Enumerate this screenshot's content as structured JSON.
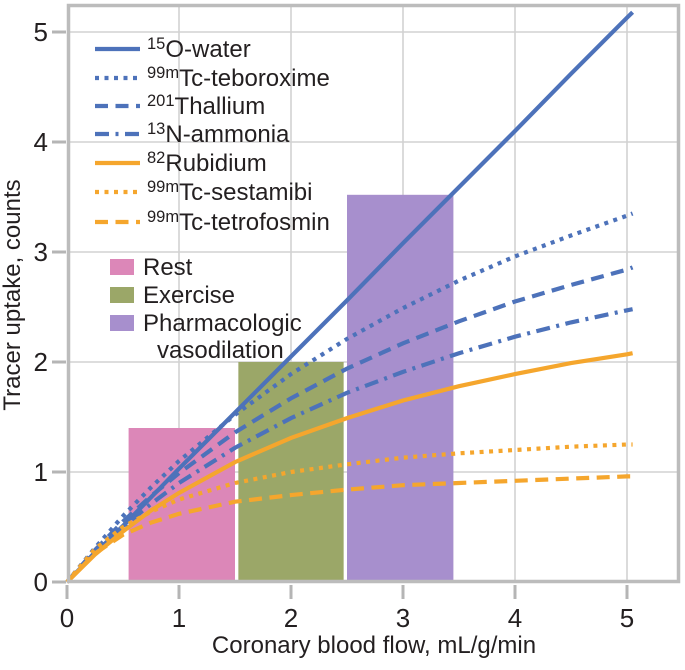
{
  "chart_data": {
    "type": "composite-line-bar",
    "title": "",
    "xlabel": "Coronary blood flow, mL/g/min",
    "ylabel": "Tracer uptake, counts",
    "xlim": [
      0,
      5.47
    ],
    "ylim": [
      0,
      5.26
    ],
    "x_ticks": [
      0,
      1,
      2,
      3,
      4,
      5
    ],
    "y_ticks": [
      0,
      1,
      2,
      3,
      4,
      5
    ],
    "grid": true,
    "legend_position": "inside-top-left",
    "colors": {
      "blue": "#4d72ba",
      "orange": "#f5a62d",
      "pink": "#dc87b8",
      "olive": "#9ba768",
      "purple": "#a78fcd",
      "grid": "#d2d2d2",
      "frame": "#bcbcbc",
      "tick": "#b5b5b5",
      "text": "#231f20"
    },
    "x": [
      0,
      0.25,
      0.5,
      0.75,
      1,
      1.5,
      2,
      2.5,
      3,
      3.5,
      4,
      4.5,
      5,
      5.05
    ],
    "series": [
      {
        "id": "o15-water",
        "sup": "15",
        "label": "O-water",
        "color": "blue",
        "style": "solid",
        "y": [
          0,
          0.26,
          0.51,
          0.77,
          1.03,
          1.54,
          2.05,
          2.56,
          3.08,
          3.59,
          4.1,
          4.62,
          5.13,
          5.18
        ]
      },
      {
        "id": "tc99m-teboroxime",
        "sup": "99m",
        "label": "Tc-teboroxime",
        "color": "blue",
        "style": "dotted",
        "y": [
          0,
          0.31,
          0.6,
          0.86,
          1.1,
          1.52,
          1.89,
          2.21,
          2.49,
          2.74,
          2.96,
          3.15,
          3.33,
          3.35
        ]
      },
      {
        "id": "tl201-thallium",
        "sup": "201",
        "label": "Thallium",
        "color": "blue",
        "style": "dashed",
        "y": [
          0,
          0.29,
          0.55,
          0.78,
          0.99,
          1.36,
          1.67,
          1.94,
          2.17,
          2.37,
          2.55,
          2.7,
          2.84,
          2.86
        ]
      },
      {
        "id": "n13-ammonia",
        "sup": "13",
        "label": "N-ammonia",
        "color": "blue",
        "style": "dashdot",
        "y": [
          0,
          0.27,
          0.5,
          0.71,
          0.9,
          1.22,
          1.49,
          1.72,
          1.91,
          2.08,
          2.23,
          2.36,
          2.47,
          2.48
        ]
      },
      {
        "id": "rb82-rubidium",
        "sup": "82",
        "label": "Rubidium",
        "color": "orange",
        "style": "solid",
        "y": [
          0,
          0.25,
          0.46,
          0.65,
          0.81,
          1.09,
          1.31,
          1.49,
          1.65,
          1.78,
          1.89,
          1.99,
          2.07,
          2.08
        ]
      },
      {
        "id": "tc99m-sestamibi",
        "sup": "99m",
        "label": "Tc-sestamibi",
        "color": "orange",
        "style": "dotted",
        "y": [
          0,
          0.3,
          0.5,
          0.64,
          0.75,
          0.9,
          1.0,
          1.07,
          1.13,
          1.17,
          1.2,
          1.23,
          1.25,
          1.25
        ]
      },
      {
        "id": "tc99m-tetrofosmin",
        "sup": "99m",
        "label": "Tc-tetrofosmin",
        "color": "orange",
        "style": "dashed",
        "y": [
          0,
          0.26,
          0.43,
          0.54,
          0.62,
          0.73,
          0.79,
          0.84,
          0.88,
          0.9,
          0.92,
          0.94,
          0.96,
          0.96
        ]
      }
    ],
    "bars": [
      {
        "id": "rest",
        "label": "Rest",
        "label_lines": [
          "Rest"
        ],
        "color": "pink",
        "x0": 0.55,
        "x1": 1.5,
        "height": 1.4
      },
      {
        "id": "exercise",
        "label": "Exercise",
        "label_lines": [
          "Exercise"
        ],
        "color": "olive",
        "x0": 1.53,
        "x1": 2.47,
        "height": 2.0
      },
      {
        "id": "pharmacologic-vasodilation",
        "label": "Pharmacologic vasodilation",
        "label_lines": [
          "Pharmacologic",
          "vasodilation"
        ],
        "color": "purple",
        "x0": 2.5,
        "x1": 3.45,
        "height": 3.52
      }
    ]
  }
}
